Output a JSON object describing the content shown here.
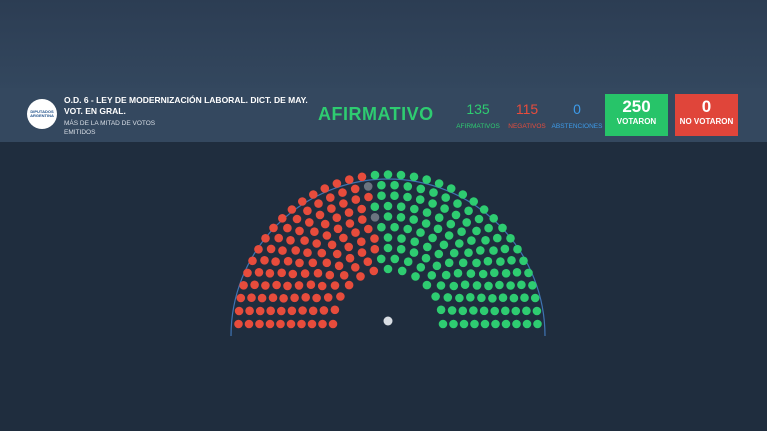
{
  "header": {
    "logo": "DIPUTADOS ARGENTINA",
    "title": "O.D. 6 - LEY DE MODERNIZACIÓN LABORAL. DICT. DE MAY. VOT. EN GRAL.",
    "subtitle": "MÁS DE LA MITAD DE VOTOS EMITIDOS",
    "result": "AFIRMATIVO",
    "result_color": "#2ecc71"
  },
  "counts": [
    {
      "value": 135,
      "label": "AFIRMATIVOS",
      "color": "#2ecc71"
    },
    {
      "value": 115,
      "label": "NEGATIVOS",
      "color": "#e74c3c"
    },
    {
      "value": 0,
      "label": "ABSTENCIONES",
      "color": "#3d9be9"
    }
  ],
  "totals": [
    {
      "value": 250,
      "label": "VOTARON",
      "color": "#27c469"
    },
    {
      "value": 0,
      "label": "NO VOTARON",
      "color": "#e0453a"
    }
  ]
}
